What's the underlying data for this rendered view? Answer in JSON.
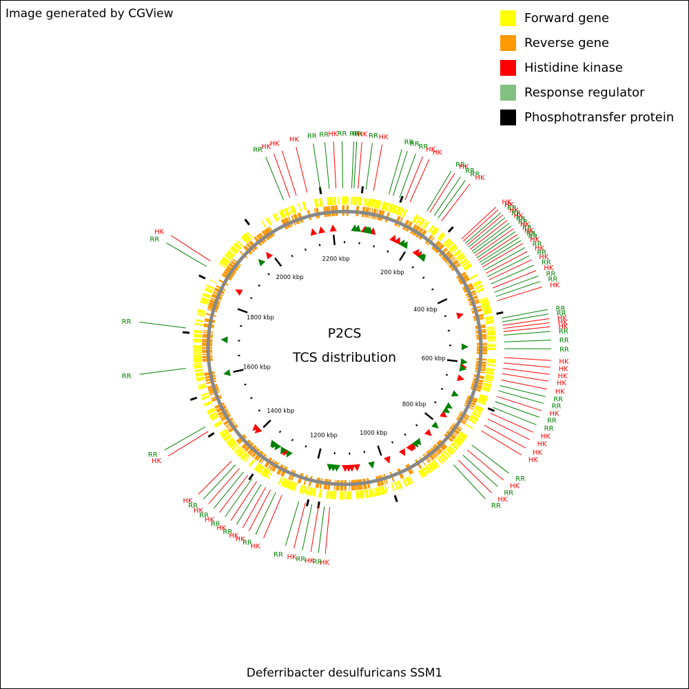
{
  "credit": "Image generated by CGView",
  "footer": "Deferribacter desulfuricans SSM1",
  "center": {
    "line1": "P2CS",
    "line2": "TCS distribution"
  },
  "legend": [
    {
      "label": "Forward gene",
      "color": "#ffff00"
    },
    {
      "label": "Reverse gene",
      "color": "#ff9900"
    },
    {
      "label": "Histidine kinase",
      "color": "#ff0000"
    },
    {
      "label": "Response regulator",
      "color": "#80c080"
    },
    {
      "label": "Phosphotransfer protein",
      "color": "#000000"
    }
  ],
  "colors": {
    "hk_label": "#ff0000",
    "rr_label": "#008000",
    "backbone": "#888888"
  },
  "chart_data": {
    "type": "circular-genome-map",
    "genome_length_kbp": 2234,
    "tick_labels": [
      {
        "kbp": 200,
        "label": "200 kbp"
      },
      {
        "kbp": 400,
        "label": "400 kbp"
      },
      {
        "kbp": 600,
        "label": "600 kbp"
      },
      {
        "kbp": 800,
        "label": "800 kbp"
      },
      {
        "kbp": 1000,
        "label": "1000 kbp"
      },
      {
        "kbp": 1200,
        "label": "1200 kbp"
      },
      {
        "kbp": 1400,
        "label": "1400 kbp"
      },
      {
        "kbp": 1600,
        "label": "1600 kbp"
      },
      {
        "kbp": 1800,
        "label": "1800 kbp"
      },
      {
        "kbp": 2000,
        "label": "2000 kbp"
      },
      {
        "kbp": 2200,
        "label": "2200 kbp"
      }
    ],
    "tcs_labels": [
      {
        "kbp": 2095,
        "type": "RR"
      },
      {
        "kbp": 2110,
        "type": "HK"
      },
      {
        "kbp": 2125,
        "type": "HK"
      },
      {
        "kbp": 2150,
        "type": "HK"
      },
      {
        "kbp": 2180,
        "type": "RR"
      },
      {
        "kbp": 2200,
        "type": "RR"
      },
      {
        "kbp": 2215,
        "type": "HK"
      },
      {
        "kbp": 2230,
        "type": "RR"
      },
      {
        "kbp": 16,
        "type": "RR"
      },
      {
        "kbp": 21,
        "type": "RR"
      },
      {
        "kbp": 30,
        "type": "HK"
      },
      {
        "kbp": 48,
        "type": "RR"
      },
      {
        "kbp": 65,
        "type": "HK"
      },
      {
        "kbp": 100,
        "type": "RR"
      },
      {
        "kbp": 110,
        "type": "RR"
      },
      {
        "kbp": 125,
        "type": "RR"
      },
      {
        "kbp": 138,
        "type": "HK"
      },
      {
        "kbp": 150,
        "type": "HK"
      },
      {
        "kbp": 193,
        "type": "RR"
      },
      {
        "kbp": 200,
        "type": "HK"
      },
      {
        "kbp": 212,
        "type": "RR"
      },
      {
        "kbp": 222,
        "type": "RR"
      },
      {
        "kbp": 232,
        "type": "HK"
      },
      {
        "kbp": 292,
        "type": "HK"
      },
      {
        "kbp": 298,
        "type": "HK"
      },
      {
        "kbp": 305,
        "type": "RR"
      },
      {
        "kbp": 310,
        "type": "HK"
      },
      {
        "kbp": 316,
        "type": "RR"
      },
      {
        "kbp": 322,
        "type": "HK"
      },
      {
        "kbp": 328,
        "type": "RR"
      },
      {
        "kbp": 334,
        "type": "RR"
      },
      {
        "kbp": 340,
        "type": "HK"
      },
      {
        "kbp": 346,
        "type": "RR"
      },
      {
        "kbp": 352,
        "type": "HK"
      },
      {
        "kbp": 358,
        "type": "RR"
      },
      {
        "kbp": 364,
        "type": "RR"
      },
      {
        "kbp": 370,
        "type": "HK"
      },
      {
        "kbp": 378,
        "type": "RR"
      },
      {
        "kbp": 386,
        "type": "HK"
      },
      {
        "kbp": 394,
        "type": "RR"
      },
      {
        "kbp": 402,
        "type": "HK"
      },
      {
        "kbp": 412,
        "type": "RR"
      },
      {
        "kbp": 422,
        "type": "HK"
      },
      {
        "kbp": 432,
        "type": "RR"
      },
      {
        "kbp": 442,
        "type": "RR"
      },
      {
        "kbp": 452,
        "type": "HK"
      },
      {
        "kbp": 492,
        "type": "RR"
      },
      {
        "kbp": 500,
        "type": "RR"
      },
      {
        "kbp": 508,
        "type": "HK"
      },
      {
        "kbp": 515,
        "type": "HK"
      },
      {
        "kbp": 522,
        "type": "HK"
      },
      {
        "kbp": 530,
        "type": "RR"
      },
      {
        "kbp": 545,
        "type": "RR"
      },
      {
        "kbp": 560,
        "type": "RR"
      },
      {
        "kbp": 580,
        "type": "HK"
      },
      {
        "kbp": 592,
        "type": "HK"
      },
      {
        "kbp": 604,
        "type": "HK"
      },
      {
        "kbp": 616,
        "type": "HK"
      },
      {
        "kbp": 630,
        "type": "HK"
      },
      {
        "kbp": 643,
        "type": "RR"
      },
      {
        "kbp": 655,
        "type": "RR"
      },
      {
        "kbp": 668,
        "type": "HK"
      },
      {
        "kbp": 680,
        "type": "RR"
      },
      {
        "kbp": 694,
        "type": "RR"
      },
      {
        "kbp": 708,
        "type": "HK"
      },
      {
        "kbp": 722,
        "type": "HK"
      },
      {
        "kbp": 738,
        "type": "HK"
      },
      {
        "kbp": 752,
        "type": "HK"
      },
      {
        "kbp": 790,
        "type": "RR"
      },
      {
        "kbp": 805,
        "type": "HK"
      },
      {
        "kbp": 820,
        "type": "RR"
      },
      {
        "kbp": 835,
        "type": "HK"
      },
      {
        "kbp": 850,
        "type": "RR"
      },
      {
        "kbp": 1220,
        "type": "RR"
      },
      {
        "kbp": 1205,
        "type": "HK"
      },
      {
        "kbp": 1190,
        "type": "RR"
      },
      {
        "kbp": 1175,
        "type": "HK"
      },
      {
        "kbp": 1162,
        "type": "RR"
      },
      {
        "kbp": 1150,
        "type": "HK"
      },
      {
        "kbp": 1260,
        "type": "HK"
      },
      {
        "kbp": 1275,
        "type": "RR"
      },
      {
        "kbp": 1288,
        "type": "HK"
      },
      {
        "kbp": 1300,
        "type": "HK"
      },
      {
        "kbp": 1312,
        "type": "RR"
      },
      {
        "kbp": 1324,
        "type": "HK"
      },
      {
        "kbp": 1336,
        "type": "RR"
      },
      {
        "kbp": 1348,
        "type": "HK"
      },
      {
        "kbp": 1360,
        "type": "RR"
      },
      {
        "kbp": 1372,
        "type": "HK"
      },
      {
        "kbp": 1384,
        "type": "RR"
      },
      {
        "kbp": 1396,
        "type": "HK"
      },
      {
        "kbp": 1480,
        "type": "HK"
      },
      {
        "kbp": 1492,
        "type": "RR"
      },
      {
        "kbp": 1630,
        "type": "RR"
      },
      {
        "kbp": 1720,
        "type": "RR"
      },
      {
        "kbp": 1865,
        "type": "RR"
      },
      {
        "kbp": 1880,
        "type": "HK"
      }
    ],
    "hk_markers_kbp": [
      2140,
      2165,
      2200,
      60,
      85,
      150,
      165,
      230,
      240,
      460,
      615,
      650,
      770,
      840,
      900,
      905,
      910,
      935,
      985,
      1080,
      1095,
      1105,
      1115,
      1300,
      1305,
      1405,
      1415,
      1850,
      1990
    ],
    "rr_markers_kbp": [
      30,
      40,
      65,
      70,
      75,
      180,
      190,
      250,
      255,
      555,
      600,
      620,
      700,
      740,
      755,
      810,
      880,
      890,
      1035,
      1140,
      1150,
      1160,
      1290,
      1310,
      1330,
      1340,
      1345,
      1600,
      1700,
      1960
    ]
  }
}
